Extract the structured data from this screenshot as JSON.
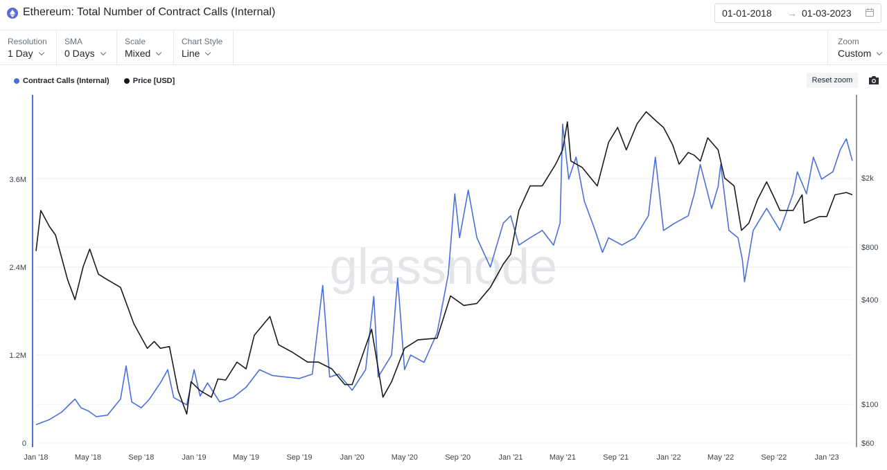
{
  "header": {
    "title": "Ethereum: Total Number of Contract Calls (Internal)",
    "date_start": "01-01-2018",
    "date_arrow": "→",
    "date_end": "01-03-2023"
  },
  "controls": [
    {
      "label": "Resolution",
      "value": "1 Day"
    },
    {
      "label": "SMA",
      "value": "0 Days"
    },
    {
      "label": "Scale",
      "value": "Mixed"
    },
    {
      "label": "Chart Style",
      "value": "Line"
    }
  ],
  "zoom": {
    "label": "Zoom",
    "value": "Custom"
  },
  "reset_zoom_label": "Reset zoom",
  "watermark": "glassnode",
  "colors": {
    "contract_calls": "#4a6fd8",
    "price": "#1a1a1a",
    "axis_accent": "#4a6fd8"
  },
  "chart_data": {
    "type": "line",
    "title": "Ethereum: Total Number of Contract Calls (Internal)",
    "x_range": [
      "2018-01-01",
      "2023-03-01"
    ],
    "x_ticks": [
      {
        "date": "2018-01-01",
        "label": "Jan '18"
      },
      {
        "date": "2018-05-01",
        "label": "May '18"
      },
      {
        "date": "2018-09-01",
        "label": "Sep '18"
      },
      {
        "date": "2019-01-01",
        "label": "Jan '19"
      },
      {
        "date": "2019-05-01",
        "label": "May '19"
      },
      {
        "date": "2019-09-01",
        "label": "Sep '19"
      },
      {
        "date": "2020-01-01",
        "label": "Jan '20"
      },
      {
        "date": "2020-05-01",
        "label": "May '20"
      },
      {
        "date": "2020-09-01",
        "label": "Sep '20"
      },
      {
        "date": "2021-01-01",
        "label": "Jan '21"
      },
      {
        "date": "2021-05-01",
        "label": "May '21"
      },
      {
        "date": "2021-09-01",
        "label": "Sep '21"
      },
      {
        "date": "2022-01-01",
        "label": "Jan '22"
      },
      {
        "date": "2022-05-01",
        "label": "May '22"
      },
      {
        "date": "2022-09-01",
        "label": "Sep '22"
      },
      {
        "date": "2023-01-01",
        "label": "Jan '23"
      }
    ],
    "y_left": {
      "scale": "linear",
      "range": [
        0,
        4750000
      ],
      "ticks": [
        {
          "value": 0,
          "label": "0"
        },
        {
          "value": 1200000,
          "label": "1.2M"
        },
        {
          "value": 2400000,
          "label": "2.4M"
        },
        {
          "value": 3600000,
          "label": "3.6M"
        }
      ]
    },
    "y_right": {
      "scale": "log",
      "range": [
        60,
        5000
      ],
      "ticks": [
        {
          "value": 60,
          "label": "$60"
        },
        {
          "value": 100,
          "label": "$100"
        },
        {
          "value": 400,
          "label": "$400"
        },
        {
          "value": 800,
          "label": "$800"
        },
        {
          "value": 2000,
          "label": "$2k"
        }
      ]
    },
    "grid": true,
    "legend_position": "top-left",
    "series": [
      {
        "name": "Contract Calls (Internal)",
        "axis": "left",
        "color": "#4a6fd8",
        "points": [
          [
            "2018-01-01",
            250000
          ],
          [
            "2018-02-01",
            320000
          ],
          [
            "2018-03-01",
            420000
          ],
          [
            "2018-04-01",
            600000
          ],
          [
            "2018-04-15",
            480000
          ],
          [
            "2018-05-01",
            440000
          ],
          [
            "2018-05-20",
            360000
          ],
          [
            "2018-06-15",
            380000
          ],
          [
            "2018-07-15",
            600000
          ],
          [
            "2018-07-28",
            1050000
          ],
          [
            "2018-08-10",
            560000
          ],
          [
            "2018-09-01",
            480000
          ],
          [
            "2018-09-20",
            600000
          ],
          [
            "2018-10-15",
            820000
          ],
          [
            "2018-11-01",
            1000000
          ],
          [
            "2018-11-15",
            620000
          ],
          [
            "2018-12-15",
            520000
          ],
          [
            "2019-01-01",
            1000000
          ],
          [
            "2019-01-15",
            640000
          ],
          [
            "2019-02-01",
            820000
          ],
          [
            "2019-03-01",
            560000
          ],
          [
            "2019-04-01",
            620000
          ],
          [
            "2019-05-01",
            760000
          ],
          [
            "2019-06-01",
            1000000
          ],
          [
            "2019-07-01",
            920000
          ],
          [
            "2019-08-01",
            900000
          ],
          [
            "2019-09-01",
            880000
          ],
          [
            "2019-10-01",
            940000
          ],
          [
            "2019-10-25",
            2150000
          ],
          [
            "2019-11-10",
            900000
          ],
          [
            "2019-12-01",
            940000
          ],
          [
            "2020-01-01",
            720000
          ],
          [
            "2020-02-01",
            1000000
          ],
          [
            "2020-02-20",
            2000000
          ],
          [
            "2020-03-01",
            900000
          ],
          [
            "2020-04-01",
            1200000
          ],
          [
            "2020-04-15",
            2250000
          ],
          [
            "2020-05-01",
            1000000
          ],
          [
            "2020-05-15",
            1200000
          ],
          [
            "2020-06-15",
            1100000
          ],
          [
            "2020-07-15",
            1500000
          ],
          [
            "2020-08-10",
            2300000
          ],
          [
            "2020-08-25",
            3400000
          ],
          [
            "2020-09-05",
            2800000
          ],
          [
            "2020-09-25",
            3450000
          ],
          [
            "2020-10-15",
            2800000
          ],
          [
            "2020-11-15",
            2400000
          ],
          [
            "2020-12-15",
            3000000
          ],
          [
            "2021-01-01",
            3100000
          ],
          [
            "2021-01-20",
            2700000
          ],
          [
            "2021-02-15",
            2800000
          ],
          [
            "2021-03-15",
            2900000
          ],
          [
            "2021-04-10",
            2700000
          ],
          [
            "2021-04-25",
            3000000
          ],
          [
            "2021-05-01",
            4350000
          ],
          [
            "2021-05-15",
            3600000
          ],
          [
            "2021-06-01",
            3900000
          ],
          [
            "2021-06-20",
            3300000
          ],
          [
            "2021-07-15",
            2900000
          ],
          [
            "2021-08-01",
            2600000
          ],
          [
            "2021-08-15",
            2800000
          ],
          [
            "2021-09-15",
            2700000
          ],
          [
            "2021-10-15",
            2800000
          ],
          [
            "2021-11-15",
            3100000
          ],
          [
            "2021-12-01",
            3900000
          ],
          [
            "2021-12-20",
            2900000
          ],
          [
            "2022-01-15",
            3000000
          ],
          [
            "2022-02-15",
            3100000
          ],
          [
            "2022-03-01",
            3400000
          ],
          [
            "2022-03-15",
            3800000
          ],
          [
            "2022-04-10",
            3200000
          ],
          [
            "2022-04-25",
            3500000
          ],
          [
            "2022-05-01",
            3800000
          ],
          [
            "2022-05-20",
            2900000
          ],
          [
            "2022-06-10",
            2800000
          ],
          [
            "2022-06-20",
            2500000
          ],
          [
            "2022-06-25",
            2200000
          ],
          [
            "2022-07-15",
            2900000
          ],
          [
            "2022-08-15",
            3200000
          ],
          [
            "2022-09-15",
            2900000
          ],
          [
            "2022-10-15",
            3400000
          ],
          [
            "2022-10-25",
            3700000
          ],
          [
            "2022-11-15",
            3400000
          ],
          [
            "2022-12-01",
            3900000
          ],
          [
            "2022-12-20",
            3600000
          ],
          [
            "2023-01-15",
            3700000
          ],
          [
            "2023-02-01",
            4000000
          ],
          [
            "2023-02-15",
            4150000
          ],
          [
            "2023-03-01",
            3850000
          ]
        ]
      },
      {
        "name": "Price [USD]",
        "axis": "right",
        "color": "#1a1a1a",
        "points": [
          [
            "2018-01-01",
            760
          ],
          [
            "2018-01-12",
            1300
          ],
          [
            "2018-02-01",
            1050
          ],
          [
            "2018-02-15",
            940
          ],
          [
            "2018-03-15",
            520
          ],
          [
            "2018-04-01",
            400
          ],
          [
            "2018-04-20",
            620
          ],
          [
            "2018-05-05",
            780
          ],
          [
            "2018-05-25",
            560
          ],
          [
            "2018-06-15",
            520
          ],
          [
            "2018-07-15",
            470
          ],
          [
            "2018-08-15",
            290
          ],
          [
            "2018-09-15",
            210
          ],
          [
            "2018-10-01",
            230
          ],
          [
            "2018-10-15",
            210
          ],
          [
            "2018-11-05",
            215
          ],
          [
            "2018-11-25",
            120
          ],
          [
            "2018-12-15",
            88
          ],
          [
            "2018-12-25",
            135
          ],
          [
            "2019-01-15",
            120
          ],
          [
            "2019-02-10",
            110
          ],
          [
            "2019-02-25",
            140
          ],
          [
            "2019-03-15",
            138
          ],
          [
            "2019-04-10",
            175
          ],
          [
            "2019-05-01",
            160
          ],
          [
            "2019-05-20",
            250
          ],
          [
            "2019-06-25",
            320
          ],
          [
            "2019-07-15",
            220
          ],
          [
            "2019-08-15",
            200
          ],
          [
            "2019-09-20",
            175
          ],
          [
            "2019-10-15",
            175
          ],
          [
            "2019-11-15",
            160
          ],
          [
            "2019-12-15",
            130
          ],
          [
            "2020-01-01",
            130
          ],
          [
            "2020-02-15",
            270
          ],
          [
            "2020-03-12",
            110
          ],
          [
            "2020-04-01",
            135
          ],
          [
            "2020-05-01",
            210
          ],
          [
            "2020-06-01",
            235
          ],
          [
            "2020-07-15",
            240
          ],
          [
            "2020-08-15",
            420
          ],
          [
            "2020-09-15",
            370
          ],
          [
            "2020-10-15",
            380
          ],
          [
            "2020-11-15",
            470
          ],
          [
            "2020-12-15",
            640
          ],
          [
            "2021-01-01",
            730
          ],
          [
            "2021-01-20",
            1300
          ],
          [
            "2021-02-15",
            1800
          ],
          [
            "2021-03-15",
            1800
          ],
          [
            "2021-04-15",
            2400
          ],
          [
            "2021-05-01",
            2900
          ],
          [
            "2021-05-12",
            4200
          ],
          [
            "2021-05-20",
            2500
          ],
          [
            "2021-06-15",
            2300
          ],
          [
            "2021-07-20",
            1800
          ],
          [
            "2021-08-15",
            3200
          ],
          [
            "2021-09-05",
            3900
          ],
          [
            "2021-09-25",
            2900
          ],
          [
            "2021-10-20",
            4100
          ],
          [
            "2021-11-10",
            4800
          ],
          [
            "2021-12-05",
            4200
          ],
          [
            "2021-12-20",
            3900
          ],
          [
            "2022-01-10",
            3100
          ],
          [
            "2022-01-25",
            2400
          ],
          [
            "2022-02-15",
            2800
          ],
          [
            "2022-03-01",
            2700
          ],
          [
            "2022-03-15",
            2500
          ],
          [
            "2022-04-01",
            3400
          ],
          [
            "2022-04-25",
            2900
          ],
          [
            "2022-05-10",
            2000
          ],
          [
            "2022-06-01",
            1800
          ],
          [
            "2022-06-18",
            1000
          ],
          [
            "2022-07-05",
            1100
          ],
          [
            "2022-07-25",
            1500
          ],
          [
            "2022-08-15",
            1900
          ],
          [
            "2022-09-01",
            1550
          ],
          [
            "2022-09-15",
            1300
          ],
          [
            "2022-10-15",
            1300
          ],
          [
            "2022-11-05",
            1600
          ],
          [
            "2022-11-10",
            1100
          ],
          [
            "2022-12-15",
            1200
          ],
          [
            "2023-01-01",
            1200
          ],
          [
            "2023-01-20",
            1600
          ],
          [
            "2023-02-15",
            1650
          ],
          [
            "2023-03-01",
            1600
          ]
        ]
      }
    ]
  }
}
